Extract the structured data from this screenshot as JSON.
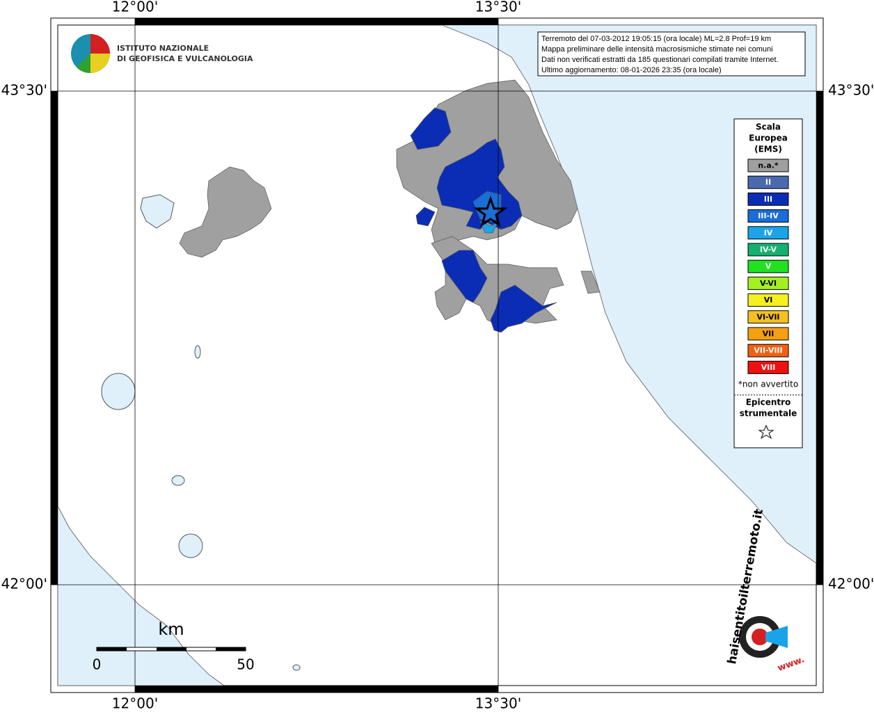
{
  "map": {
    "axis_labels": {
      "top": [
        "12°00'",
        "13°30'"
      ],
      "bottom": [
        "12°00'",
        "13°30'"
      ],
      "left": [
        "43°30'",
        "42°00'"
      ],
      "right": [
        "43°30'",
        "42°00'"
      ]
    },
    "info_box": [
      "Terremoto del 07-03-2012 19:05:15 (ora locale) ML=2.8 Prof=19 km",
      "Mappa preliminare delle intensità macrosismiche stimate nei comuni",
      "Dati non verificati estratti da 185 questionari compilati tramite Internet.",
      "Ultimo aggiornamento: 08-01-2026 23:35 (ora locale)"
    ],
    "institute": [
      "ISTITUTO NAZIONALE",
      "DI GEOFISICA E VULCANOLOGIA"
    ],
    "legend": {
      "title": [
        "Scala",
        "Europea",
        "(EMS)"
      ],
      "classes": [
        {
          "label": "n.a.*",
          "color": "#a0a0a0"
        },
        {
          "label": "II",
          "color": "#4a6ab0"
        },
        {
          "label": "III",
          "color": "#0b2db5"
        },
        {
          "label": "III-IV",
          "color": "#1a6ed6"
        },
        {
          "label": "IV",
          "color": "#1ca3e8"
        },
        {
          "label": "IV-V",
          "color": "#14b070"
        },
        {
          "label": "V",
          "color": "#22e022"
        },
        {
          "label": "V-VI",
          "color": "#a4f020"
        },
        {
          "label": "VI",
          "color": "#f5f020"
        },
        {
          "label": "VI-VII",
          "color": "#f5c020"
        },
        {
          "label": "VII",
          "color": "#f5a010"
        },
        {
          "label": "VII-VIII",
          "color": "#f56010"
        },
        {
          "label": "VIII",
          "color": "#f01010"
        }
      ],
      "note": "*non avvertito",
      "epicenter": [
        "Epicentro",
        "strumentale"
      ]
    },
    "scale_bar": {
      "unit": "km",
      "labels": [
        "0",
        "50"
      ]
    },
    "website": [
      "haisentitoilterremoto.it",
      "www."
    ]
  }
}
